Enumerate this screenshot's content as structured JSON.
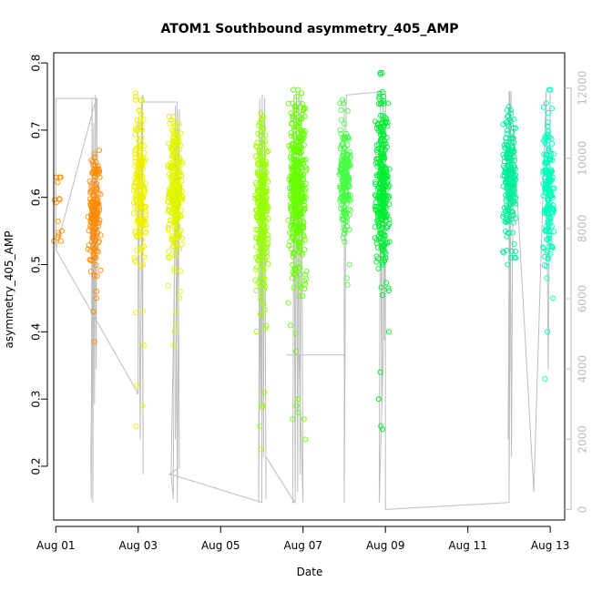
{
  "chart_data": {
    "type": "scatter",
    "title": "ATOM1 Southbound asymmetry_405_AMP",
    "xlabel": "Date",
    "ylabel": "asymmetry_405_AMP",
    "xlim": [
      -0.05,
      12.35
    ],
    "ylim": [
      0.12,
      0.815
    ],
    "y2lim": [
      -300,
      13000
    ],
    "x_ticks": [
      {
        "label": "Aug 01",
        "value": 0
      },
      {
        "label": "Aug 03",
        "value": 2
      },
      {
        "label": "Aug 05",
        "value": 4
      },
      {
        "label": "Aug 07",
        "value": 6
      },
      {
        "label": "Aug 09",
        "value": 8
      },
      {
        "label": "Aug 11",
        "value": 10
      },
      {
        "label": "Aug 13",
        "value": 12
      }
    ],
    "y_ticks": [
      "0.2",
      "0.3",
      "0.4",
      "0.5",
      "0.6",
      "0.7",
      "0.8"
    ],
    "y2_ticks": [
      "0",
      "2000",
      "4000",
      "6000",
      "8000",
      "10000",
      "12000"
    ],
    "series": [
      {
        "name": "c1",
        "color": "#ff8c00",
        "x": [
          0.02,
          0.05,
          0.08
        ],
        "y": [
          0.56,
          0.58,
          0.6
        ],
        "spread": [
          0.04,
          0.04,
          0.03
        ],
        "min": [
          0.535,
          0.535,
          0.55
        ],
        "max": [
          0.63,
          0.63,
          0.63
        ],
        "n": 9
      },
      {
        "name": "c2",
        "color": "#ff8a00",
        "x": [
          0.88,
          0.92,
          0.96,
          1.0
        ],
        "y": [
          0.57,
          0.58,
          0.59,
          0.58
        ],
        "spread": [
          0.04,
          0.04,
          0.04,
          0.04
        ],
        "min": [
          0.385,
          0.43,
          0.45,
          0.46
        ],
        "max": [
          0.655,
          0.66,
          0.67,
          0.665
        ],
        "n": 150
      },
      {
        "name": "c3",
        "color": "#eef000",
        "x": [
          1.98,
          2.02,
          2.06,
          2.1
        ],
        "y": [
          0.61,
          0.62,
          0.61,
          0.6
        ],
        "spread": [
          0.055,
          0.055,
          0.055,
          0.05
        ],
        "min": [
          0.26,
          0.29,
          0.32,
          0.38
        ],
        "max": [
          0.75,
          0.755,
          0.745,
          0.73
        ],
        "n": 200
      },
      {
        "name": "c4",
        "color": "#e0f500",
        "x": [
          2.82,
          2.86,
          2.9,
          2.94,
          2.98
        ],
        "y": [
          0.6,
          0.61,
          0.62,
          0.61,
          0.6
        ],
        "spread": [
          0.05,
          0.05,
          0.05,
          0.05,
          0.05
        ],
        "min": [
          0.4,
          0.38,
          0.41,
          0.43,
          0.45
        ],
        "max": [
          0.72,
          0.72,
          0.715,
          0.71,
          0.7
        ],
        "n": 280
      },
      {
        "name": "c5",
        "color": "#99ff00",
        "x": [
          4.94,
          4.98,
          5.02,
          5.06
        ],
        "y": [
          0.57,
          0.59,
          0.6,
          0.58
        ],
        "spread": [
          0.07,
          0.07,
          0.06,
          0.06
        ],
        "min": [
          0.225,
          0.26,
          0.29,
          0.31
        ],
        "max": [
          0.715,
          0.72,
          0.725,
          0.71
        ],
        "n": 280
      },
      {
        "name": "c6",
        "color": "#66ff00",
        "x": [
          5.74,
          5.79,
          5.84,
          5.89,
          5.94,
          5.99
        ],
        "y": [
          0.59,
          0.61,
          0.62,
          0.62,
          0.61,
          0.59
        ],
        "spread": [
          0.065,
          0.065,
          0.06,
          0.06,
          0.06,
          0.065
        ],
        "min": [
          0.27,
          0.28,
          0.3,
          0.29,
          0.27,
          0.24
        ],
        "max": [
          0.74,
          0.76,
          0.76,
          0.755,
          0.75,
          0.74
        ],
        "n": 380
      },
      {
        "name": "c7",
        "color": "#44ff44",
        "x": [
          6.98,
          7.02,
          7.06
        ],
        "y": [
          0.62,
          0.63,
          0.62
        ],
        "spread": [
          0.04,
          0.04,
          0.04
        ],
        "min": [
          0.47,
          0.48,
          0.5
        ],
        "max": [
          0.74,
          0.745,
          0.74
        ],
        "n": 180
      },
      {
        "name": "c8",
        "color": "#00ee33",
        "x": [
          7.84,
          7.88,
          7.92,
          7.96,
          8.0
        ],
        "y": [
          0.6,
          0.62,
          0.63,
          0.62,
          0.6
        ],
        "spread": [
          0.06,
          0.06,
          0.055,
          0.055,
          0.06
        ],
        "min": [
          0.255,
          0.26,
          0.3,
          0.34,
          0.4
        ],
        "max": [
          0.785,
          0.785,
          0.75,
          0.75,
          0.74
        ],
        "n": 320
      },
      {
        "name": "c9",
        "color": "#00ee99",
        "x": [
          10.95,
          10.99,
          11.03,
          11.07
        ],
        "y": [
          0.62,
          0.63,
          0.62,
          0.61
        ],
        "spread": [
          0.045,
          0.045,
          0.045,
          0.045
        ],
        "min": [
          0.5,
          0.51,
          0.52,
          0.51
        ],
        "max": [
          0.73,
          0.735,
          0.73,
          0.725
        ],
        "n": 230
      },
      {
        "name": "c10",
        "color": "#00ffbb",
        "x": [
          11.92,
          11.96,
          12.0
        ],
        "y": [
          0.61,
          0.62,
          0.6
        ],
        "spread": [
          0.05,
          0.05,
          0.05
        ],
        "min": [
          0.33,
          0.4,
          0.45
        ],
        "max": [
          0.76,
          0.76,
          0.74
        ],
        "n": 180
      }
    ],
    "count_line": {
      "color": "#bdbdbd",
      "axis": "right",
      "x": [
        0.0,
        0.0,
        0.98,
        0.98,
        0.85,
        0.86,
        0.88,
        0.9,
        0.92,
        0.94,
        0.96,
        0.98,
        1.0,
        1.0,
        0.0,
        0.0,
        2.0,
        2.0,
        2.0,
        1.95,
        2.0,
        2.0,
        2.05,
        2.1,
        2.12,
        2.08,
        2.1,
        2.15,
        2.95,
        2.8,
        2.85,
        2.9,
        2.95,
        3.0,
        2.9,
        2.95,
        3.0,
        2.75,
        2.8,
        5.0,
        5.0,
        4.92,
        4.95,
        4.98,
        5.01,
        5.04,
        5.07,
        5.1,
        5.1,
        5.1,
        5.8,
        5.75,
        5.78,
        5.81,
        5.84,
        5.87,
        5.9,
        5.93,
        5.96,
        6.0,
        5.9,
        5.6,
        7.0,
        7.0,
        7.0,
        7.0,
        7.05,
        7.05,
        8.0,
        7.95,
        7.85,
        7.88,
        7.91,
        7.94,
        7.97,
        8.0,
        8.0,
        8.0,
        8.0,
        11.0,
        11.0,
        11.0,
        11.05,
        10.98,
        11.02,
        11.06,
        11.1,
        11.6,
        11.9,
        11.95,
        12.0,
        12.0,
        12.0,
        12.0
      ],
      "y": [
        11700,
        7400,
        11700,
        11700,
        1500,
        300,
        11700,
        200,
        11000,
        3000,
        11800,
        4000,
        11000,
        11700,
        11700,
        7400,
        3300,
        3300,
        3300,
        3300,
        3300,
        11000,
        2000,
        11800,
        1000,
        11500,
        11800,
        11600,
        11600,
        1000,
        300,
        11500,
        200,
        11400,
        2000,
        11400,
        1200,
        1000,
        1000,
        200,
        11000,
        200,
        11700,
        3000,
        11800,
        1500,
        11700,
        300,
        1500,
        1500,
        200,
        200,
        11800,
        200,
        11900,
        500,
        11900,
        1000,
        11800,
        200,
        4400,
        4400,
        4400,
        200,
        11700,
        200,
        11700,
        11800,
        11900,
        4500,
        200,
        11900,
        3000,
        11800,
        4800,
        11800,
        4800,
        4800,
        0,
        200,
        11900,
        200,
        11900,
        2000,
        11900,
        1500,
        11000,
        500,
        11900,
        4000,
        11900,
        11900,
        11900,
        11900
      ]
    }
  }
}
